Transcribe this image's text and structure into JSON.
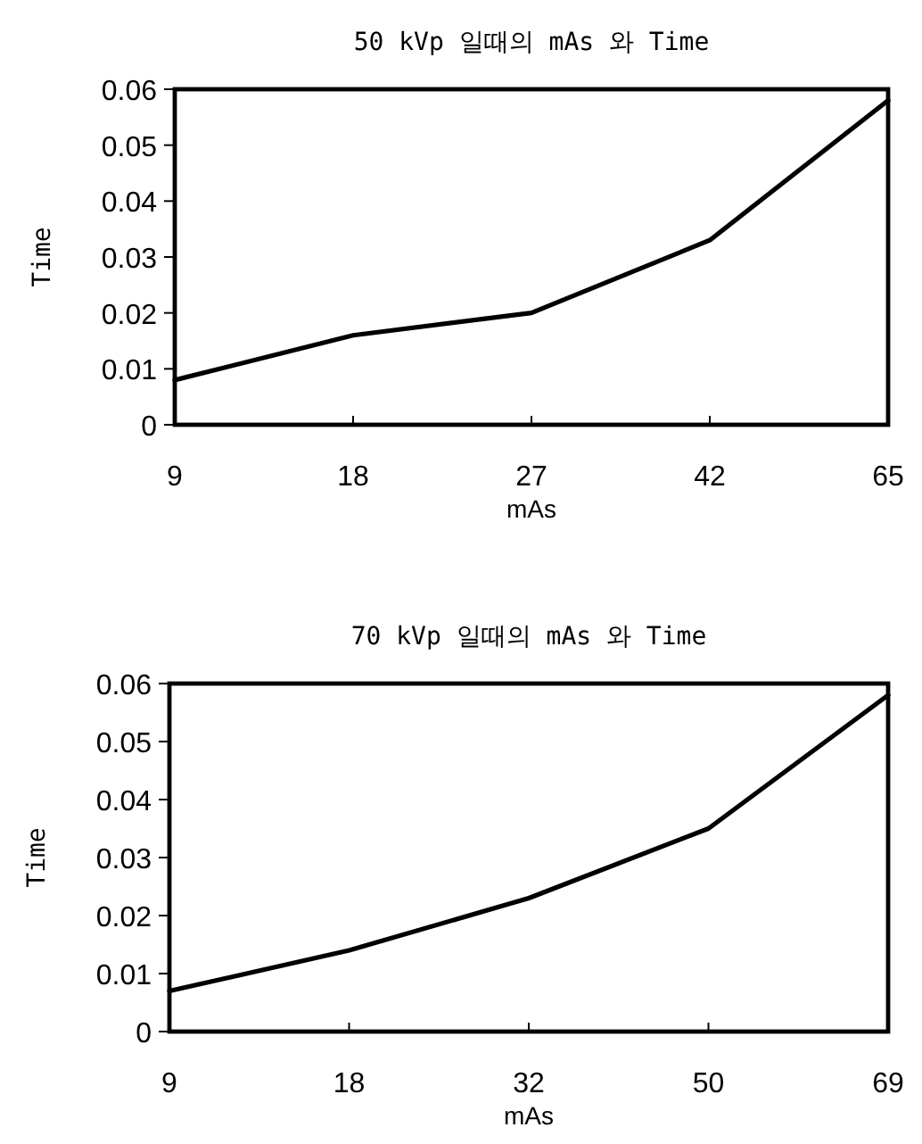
{
  "chart_data": [
    {
      "type": "line",
      "title": "50 kVp 일때의 mAs 와 Time",
      "xlabel": "mAs",
      "ylabel": "Time",
      "categories": [
        "9",
        "18",
        "27",
        "42",
        "65"
      ],
      "ylim": [
        0,
        0.06
      ],
      "yticks": [
        {
          "value": 0,
          "label": "0"
        },
        {
          "value": 0.01,
          "label": "0.01"
        },
        {
          "value": 0.02,
          "label": "0.02"
        },
        {
          "value": 0.03,
          "label": "0.03"
        },
        {
          "value": 0.04,
          "label": "0.04"
        },
        {
          "value": 0.05,
          "label": "0.05"
        },
        {
          "value": 0.06,
          "label": "0.06"
        }
      ],
      "series": [
        {
          "color": "#000000",
          "values": [
            0.008,
            0.016,
            0.02,
            0.033,
            0.058
          ]
        }
      ]
    },
    {
      "type": "line",
      "title": "70 kVp 일때의 mAs 와 Time",
      "xlabel": "mAs",
      "ylabel": "Time",
      "categories": [
        "9",
        "18",
        "32",
        "50",
        "69"
      ],
      "ylim": [
        0,
        0.06
      ],
      "yticks": [
        {
          "value": 0,
          "label": "0"
        },
        {
          "value": 0.01,
          "label": "0.01"
        },
        {
          "value": 0.02,
          "label": "0.02"
        },
        {
          "value": 0.03,
          "label": "0.03"
        },
        {
          "value": 0.04,
          "label": "0.04"
        },
        {
          "value": 0.05,
          "label": "0.05"
        },
        {
          "value": 0.06,
          "label": "0.06"
        }
      ],
      "series": [
        {
          "color": "#000000",
          "values": [
            0.007,
            0.014,
            0.023,
            0.035,
            0.058
          ]
        }
      ]
    }
  ]
}
